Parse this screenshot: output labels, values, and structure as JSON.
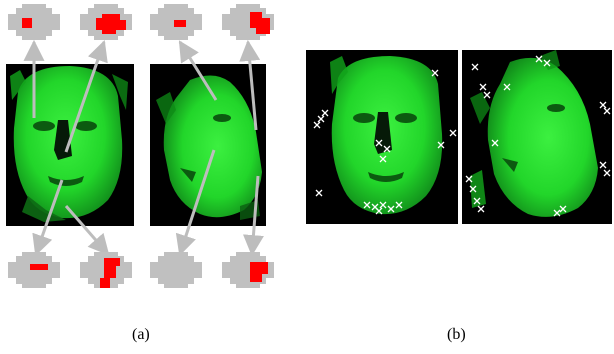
{
  "figure": {
    "caption_a": "(a)",
    "caption_b": "(b)"
  },
  "colors": {
    "face_green": "#22d62a",
    "face_dark_green": "#0c5a10",
    "background_black": "#000000",
    "patch_gray": "#c0c0c0",
    "patch_red": "#ff0000",
    "arrow_gray": "#bdbdbd",
    "marker_white": "#ffffff"
  },
  "icons": {
    "patch": "octagonal-gray-patch",
    "marker": "x-cross-marker"
  }
}
